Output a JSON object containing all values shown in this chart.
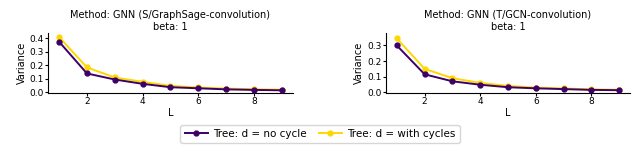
{
  "subplots": [
    {
      "title": "Method: GNN (S/GraphSage-convolution)\nbeta: 1",
      "xlabel": "L",
      "ylabel": "Variance",
      "x": [
        1,
        2,
        3,
        4,
        5,
        6,
        7,
        8,
        9
      ],
      "y_no_cycle": [
        0.375,
        0.14,
        0.095,
        0.063,
        0.038,
        0.03,
        0.022,
        0.018,
        0.015
      ],
      "y_with_cycle": [
        0.41,
        0.185,
        0.11,
        0.078,
        0.048,
        0.036,
        0.028,
        0.022,
        0.02
      ],
      "ylim": [
        -0.005,
        0.44
      ],
      "yticks": [
        0.0,
        0.1,
        0.2,
        0.3,
        0.4
      ],
      "xticks": [
        2,
        4,
        6,
        8
      ]
    },
    {
      "title": "Method: GNN (T/GCN-convolution)\nbeta: 1",
      "xlabel": "L",
      "ylabel": "Variance",
      "x": [
        1,
        2,
        3,
        4,
        5,
        6,
        7,
        8,
        9
      ],
      "y_no_cycle": [
        0.3,
        0.115,
        0.07,
        0.048,
        0.032,
        0.025,
        0.02,
        0.015,
        0.013
      ],
      "y_with_cycle": [
        0.345,
        0.15,
        0.09,
        0.06,
        0.04,
        0.03,
        0.024,
        0.018,
        0.016
      ],
      "ylim": [
        -0.005,
        0.38
      ],
      "yticks": [
        0.0,
        0.1,
        0.2,
        0.3
      ],
      "xticks": [
        2,
        4,
        6,
        8
      ]
    }
  ],
  "color_no_cycle": "#3d0066",
  "color_with_cycle": "#FFD700",
  "legend_no_cycle": "Tree: d = no cycle",
  "legend_with_cycle": "Tree: d = with cycles",
  "marker": "o",
  "markersize": 3.5,
  "linewidth": 1.4,
  "title_fontsize": 7.0,
  "label_fontsize": 7.0,
  "tick_fontsize": 6.5,
  "legend_fontsize": 7.5
}
